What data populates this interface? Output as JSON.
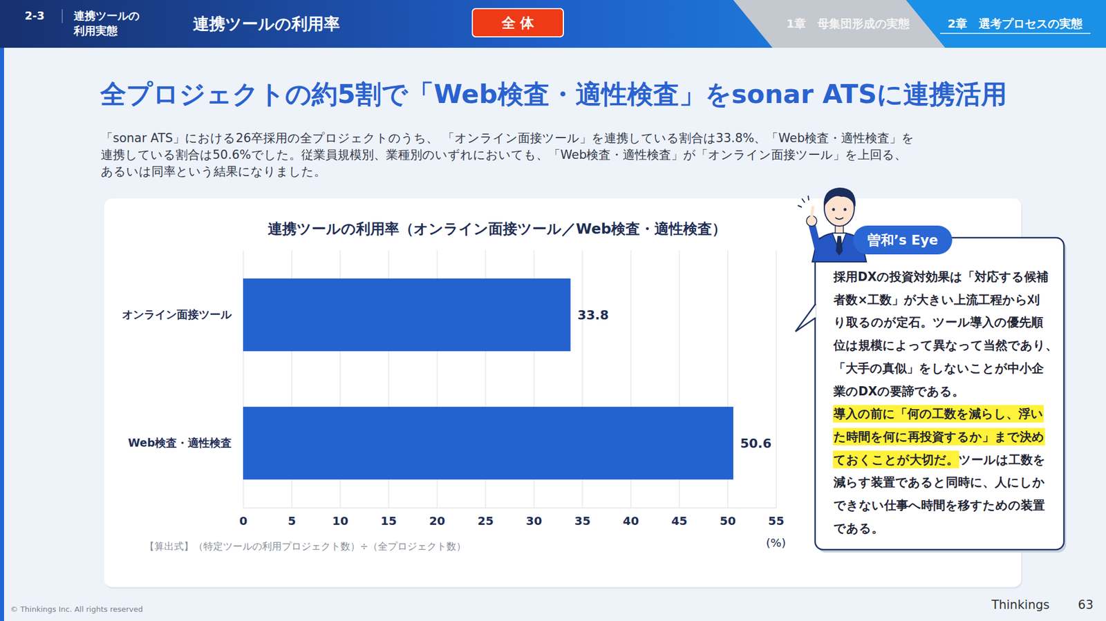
{
  "header": {
    "section": "2-3",
    "section_name": [
      "連携ツールの",
      "利用実態"
    ],
    "page_title": "連携ツールの利用率",
    "badge": "全 体",
    "tabs": [
      "1章　母集団形成の実態",
      "2章　選考プロセスの実態"
    ]
  },
  "headline": "全プロジェクトの約5割で「Web検査・適性検査」をsonar ATSに連携活用",
  "description": [
    "「sonar ATS」における26卒採用の全プロジェクトのうち、 「オンライン面接ツール」を連携している割合は33.8%、「Web検査・適性検査」を",
    "連携している割合は50.6%でした。従業員規模別、業種別のいずれにおいても、「Web検査・適性検査」が「オンライン面接ツール」を上回る、",
    "あるいは同率という結果になりました。"
  ],
  "chart_data": {
    "type": "bar",
    "title": "連携ツールの利用率（オンライン面接ツール／Web検査・適性検査）",
    "categories": [
      "オンライン面接ツール",
      "Web検査・適性検査"
    ],
    "values": [
      33.8,
      50.6
    ],
    "color": "#2462d0",
    "orientation": "horizontal",
    "xlim": [
      0,
      55
    ],
    "xticks": [
      0,
      5,
      10,
      15,
      20,
      25,
      30,
      35,
      40,
      45,
      50,
      55
    ],
    "grid": true,
    "data_labels": true,
    "xlabel": "(%)",
    "annotation": "【算出式】（特定ツールの利用プロジェクト数）÷（全プロジェクト数）"
  },
  "eye": {
    "label": "曽和’s Eye",
    "lines": [
      [
        {
          "text": "採用DXの投資対効果は「対応する候補",
          "highlight": false
        }
      ],
      [
        {
          "text": "者数×工数」が大きい上流工程から刈",
          "highlight": false
        }
      ],
      [
        {
          "text": "り取るのが定石。ツール導入の優先順",
          "highlight": false
        }
      ],
      [
        {
          "text": "位は規模によって異なって当然であり、",
          "highlight": false
        }
      ],
      [
        {
          "text": "「大手の真似」をしないことが中小企",
          "highlight": false
        }
      ],
      [
        {
          "text": "業のDXの要諦である。",
          "highlight": false
        }
      ],
      [
        {
          "text": "導入の前に「何の工数を減らし、浮い",
          "highlight": true
        }
      ],
      [
        {
          "text": "た時間を何に再投資するか」まで決め",
          "highlight": true
        }
      ],
      [
        {
          "text": "ておくことが大切だ。",
          "highlight": true
        },
        {
          "text": "ツールは工数を",
          "highlight": false
        }
      ],
      [
        {
          "text": "減らす装置であると同時に、人にしか",
          "highlight": false
        }
      ],
      [
        {
          "text": "できない仕事へ時間を移すための装置",
          "highlight": false
        }
      ],
      [
        {
          "text": "である。",
          "highlight": false
        }
      ]
    ]
  },
  "footer": {
    "copyright": "© Thinkings Inc. All rights reserved",
    "brand": "Thinkings",
    "page": 63
  }
}
